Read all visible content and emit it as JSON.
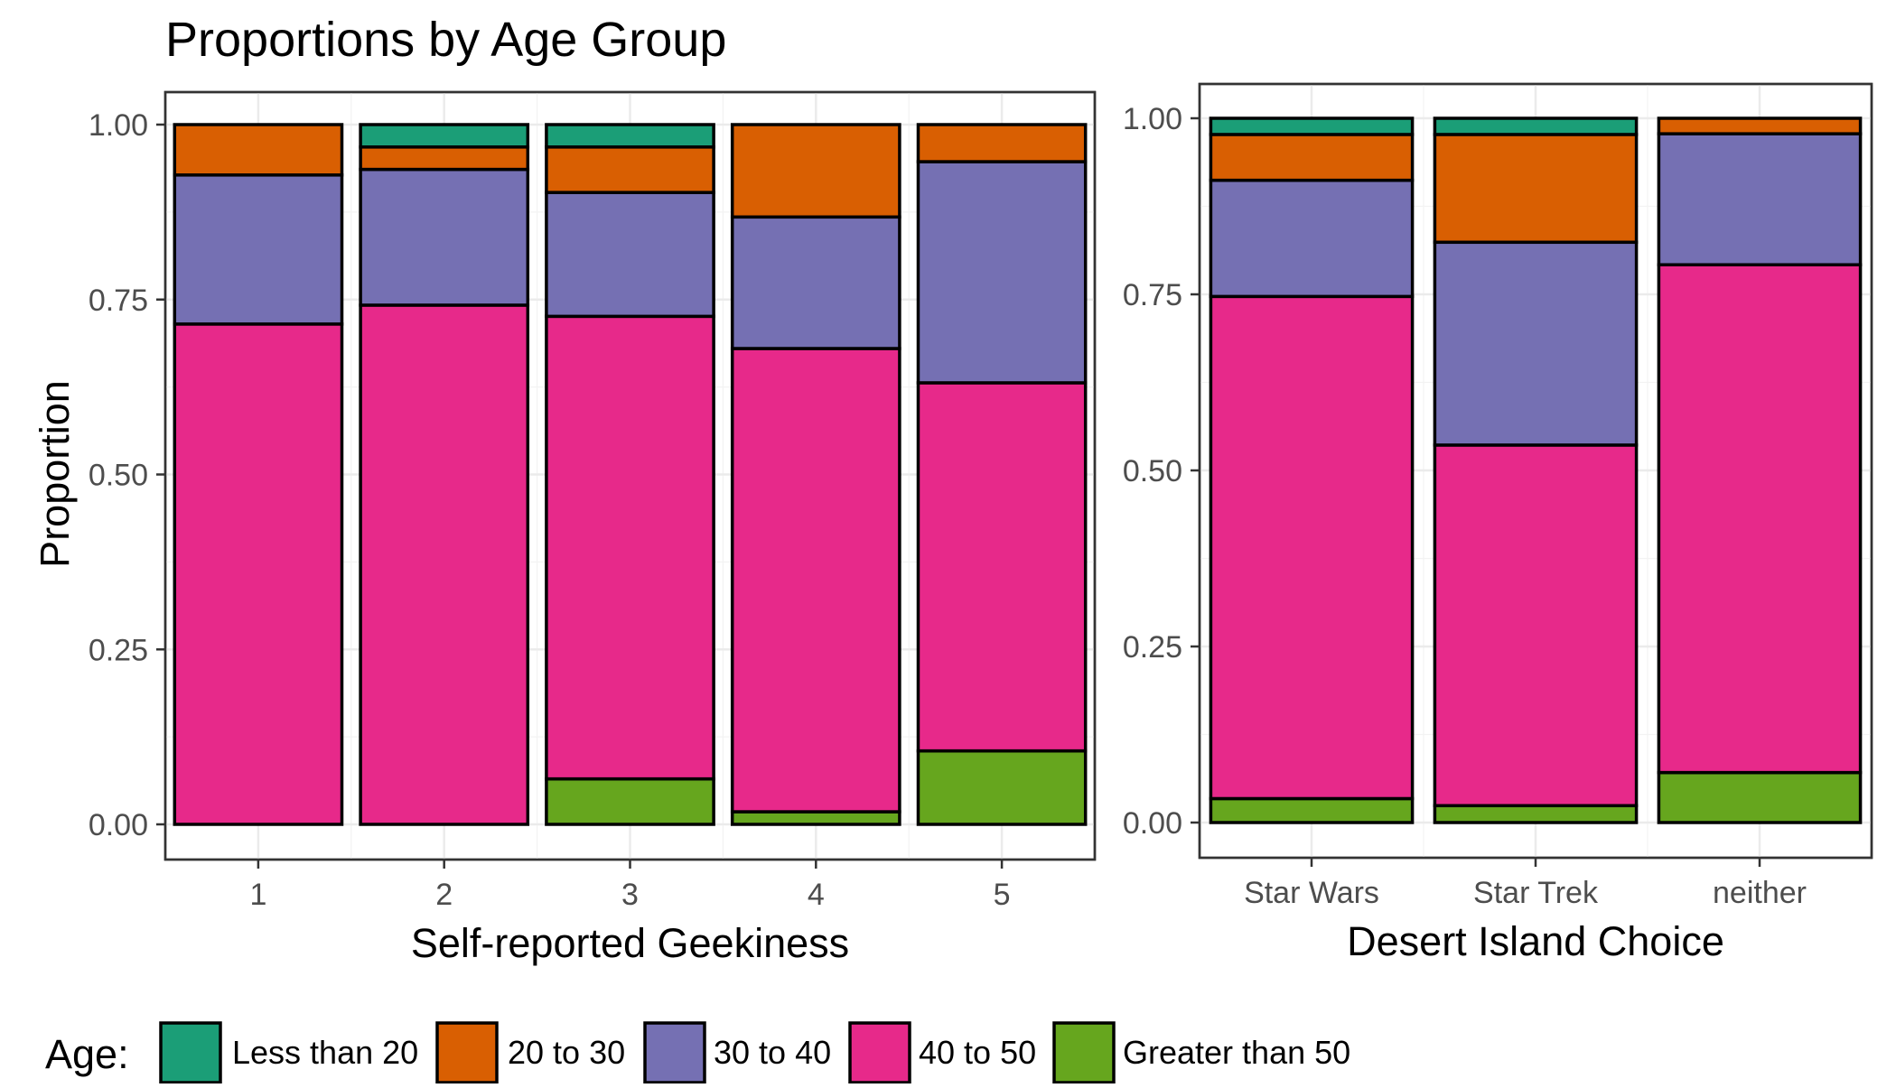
{
  "title": "Proportions by Age Group",
  "colors": {
    "Less than 20": "#1b9e77",
    "20 to 30": "#d95f02",
    "30 to 40": "#7570b3",
    "40 to 50": "#e7298a",
    "Greater than 50": "#66a61e"
  },
  "chart_data": [
    {
      "type": "bar",
      "stacked": true,
      "xlabel": "Self-reported Geekiness",
      "ylabel": "Proportion",
      "ylim": [
        0,
        1
      ],
      "yticks": [
        "0.00",
        "0.25",
        "0.50",
        "0.75",
        "1.00"
      ],
      "categories": [
        "1",
        "2",
        "3",
        "4",
        "5"
      ],
      "series": [
        {
          "name": "Greater than 50",
          "values": [
            0.0,
            0.0,
            0.065,
            0.018,
            0.105
          ]
        },
        {
          "name": "40 to 50",
          "values": [
            0.715,
            0.742,
            0.661,
            0.662,
            0.526
          ]
        },
        {
          "name": "30 to 40",
          "values": [
            0.213,
            0.194,
            0.177,
            0.188,
            0.316
          ]
        },
        {
          "name": "20 to 30",
          "values": [
            0.072,
            0.032,
            0.065,
            0.132,
            0.053
          ]
        },
        {
          "name": "Less than 20",
          "values": [
            0.0,
            0.032,
            0.032,
            0.0,
            0.0
          ]
        }
      ]
    },
    {
      "type": "bar",
      "stacked": true,
      "xlabel": "Desert Island Choice",
      "ylabel": "",
      "ylim": [
        0,
        1
      ],
      "yticks": [
        "0.00",
        "0.25",
        "0.50",
        "0.75",
        "1.00"
      ],
      "categories": [
        "Star Wars",
        "Star Trek",
        "neither"
      ],
      "series": [
        {
          "name": "Greater than 50",
          "values": [
            0.034,
            0.024,
            0.071
          ]
        },
        {
          "name": "40 to 50",
          "values": [
            0.713,
            0.512,
            0.721
          ]
        },
        {
          "name": "30 to 40",
          "values": [
            0.165,
            0.288,
            0.186
          ]
        },
        {
          "name": "20 to 30",
          "values": [
            0.065,
            0.153,
            0.022
          ]
        },
        {
          "name": "Less than 20",
          "values": [
            0.023,
            0.023,
            0.0
          ]
        }
      ]
    }
  ],
  "legend": {
    "title": "Age:",
    "position": "bottom",
    "items": [
      "Less than 20",
      "20 to 30",
      "30 to 40",
      "40 to 50",
      "Greater than 50"
    ]
  }
}
